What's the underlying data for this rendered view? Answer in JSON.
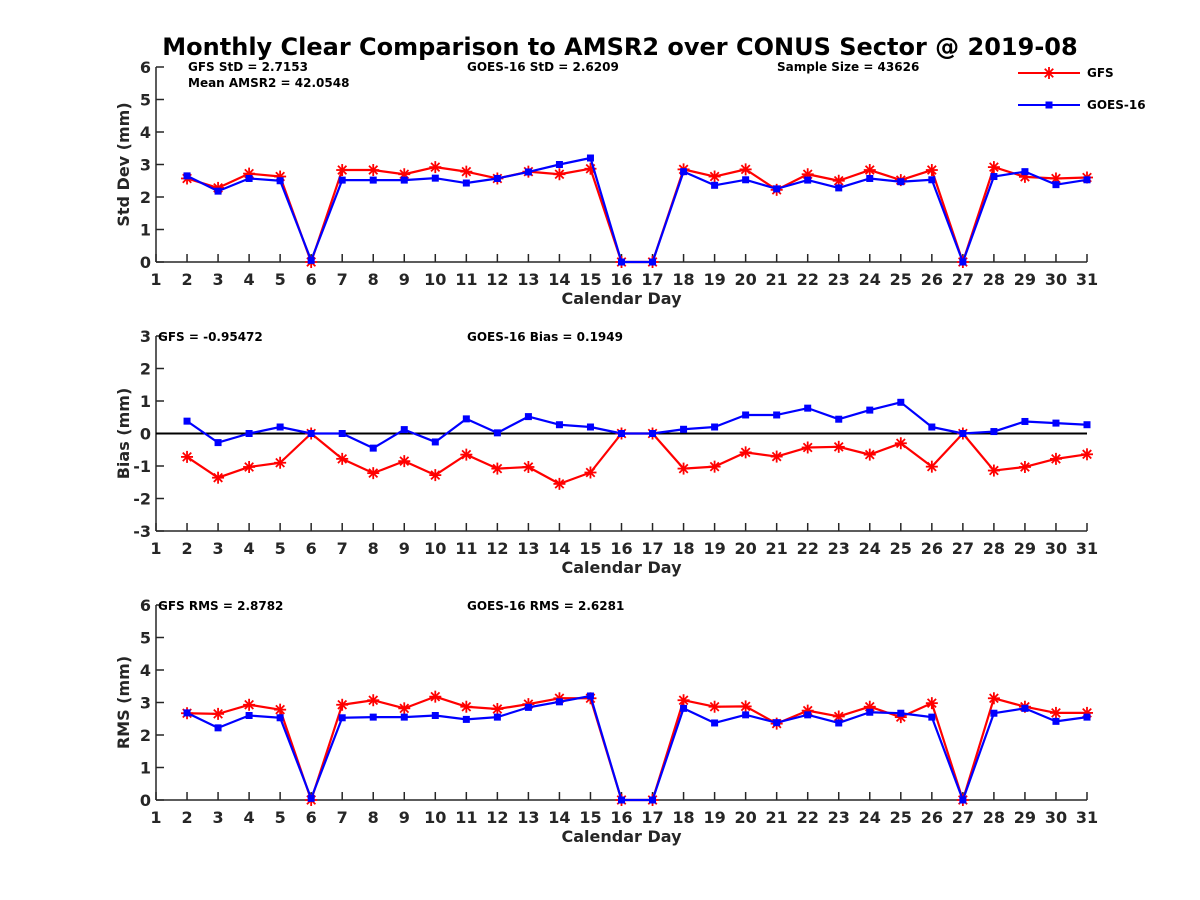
{
  "chart_data": {
    "title": "Monthly Clear Comparison to AMSR2 over CONUS Sector @ 2019-08",
    "legend": {
      "placement": "top-right",
      "entries": [
        {
          "name": "GFS",
          "color": "#ff0000",
          "marker": "asterisk"
        },
        {
          "name": "GOES-16",
          "color": "#0000ff",
          "marker": "square"
        }
      ]
    },
    "panels": [
      {
        "type": "line",
        "xlabel": "Calendar Day",
        "ylabel": "Std Dev (mm)",
        "xlim": [
          1,
          31
        ],
        "ylim": [
          0,
          6
        ],
        "xticks": [
          "1",
          "2",
          "3",
          "4",
          "5",
          "6",
          "7",
          "8",
          "9",
          "10",
          "11",
          "12",
          "13",
          "14",
          "15",
          "16",
          "17",
          "18",
          "19",
          "20",
          "21",
          "22",
          "23",
          "24",
          "25",
          "26",
          "27",
          "28",
          "29",
          "30",
          "31"
        ],
        "yticks": [
          "0",
          "1",
          "2",
          "3",
          "4",
          "5",
          "6"
        ],
        "annotations": [
          "GFS StD = 2.7153",
          "Mean AMSR2 = 42.0548",
          "GOES-16 StD = 2.6209",
          "Sample Size = 43626"
        ],
        "x": [
          2,
          3,
          4,
          5,
          6,
          7,
          8,
          9,
          10,
          11,
          12,
          13,
          14,
          15,
          16,
          17,
          18,
          19,
          20,
          21,
          22,
          23,
          24,
          25,
          26,
          27,
          28,
          29,
          30,
          31
        ],
        "series": [
          {
            "name": "GFS",
            "values": [
              2.57,
              2.28,
              2.72,
              2.63,
              0.0,
              2.83,
              2.83,
              2.7,
              2.92,
              2.78,
              2.57,
              2.78,
              2.7,
              2.87,
              0.0,
              0.0,
              2.85,
              2.63,
              2.85,
              2.22,
              2.7,
              2.5,
              2.83,
              2.52,
              2.83,
              0.0,
              2.92,
              2.62,
              2.57,
              2.6
            ]
          },
          {
            "name": "GOES-16",
            "values": [
              2.65,
              2.18,
              2.57,
              2.5,
              0.05,
              2.52,
              2.52,
              2.52,
              2.58,
              2.43,
              2.57,
              2.77,
              3.0,
              3.2,
              0.0,
              0.0,
              2.78,
              2.36,
              2.53,
              2.25,
              2.52,
              2.28,
              2.57,
              2.47,
              2.53,
              0.0,
              2.63,
              2.78,
              2.38,
              2.53
            ]
          }
        ]
      },
      {
        "type": "line",
        "xlabel": "Calendar Day",
        "ylabel": "Bias (mm)",
        "xlim": [
          1,
          31
        ],
        "ylim": [
          -3,
          3
        ],
        "zero_line": true,
        "xticks": [
          "1",
          "2",
          "3",
          "4",
          "5",
          "6",
          "7",
          "8",
          "9",
          "10",
          "11",
          "12",
          "13",
          "14",
          "15",
          "16",
          "17",
          "18",
          "19",
          "20",
          "21",
          "22",
          "23",
          "24",
          "25",
          "26",
          "27",
          "28",
          "29",
          "30",
          "31"
        ],
        "yticks": [
          "-3",
          "-2",
          "-1",
          "0",
          "1",
          "2",
          "3"
        ],
        "annotations": [
          "GFS = -0.95472",
          "GOES-16 Bias = 0.1949"
        ],
        "x": [
          2,
          3,
          4,
          5,
          6,
          7,
          8,
          9,
          10,
          11,
          12,
          13,
          14,
          15,
          16,
          17,
          18,
          19,
          20,
          21,
          22,
          23,
          24,
          25,
          26,
          27,
          28,
          29,
          30,
          31
        ],
        "series": [
          {
            "name": "GFS",
            "values": [
              -0.72,
              -1.36,
              -1.03,
              -0.9,
              0.0,
              -0.78,
              -1.22,
              -0.85,
              -1.28,
              -0.65,
              -1.08,
              -1.03,
              -1.55,
              -1.2,
              0.0,
              0.0,
              -1.08,
              -1.02,
              -0.58,
              -0.71,
              -0.43,
              -0.41,
              -0.65,
              -0.3,
              -1.02,
              0.0,
              -1.14,
              -1.03,
              -0.78,
              -0.64
            ]
          },
          {
            "name": "GOES-16",
            "values": [
              0.38,
              -0.28,
              0.0,
              0.2,
              0.0,
              0.0,
              -0.45,
              0.12,
              -0.26,
              0.45,
              0.02,
              0.52,
              0.27,
              0.2,
              0.0,
              0.0,
              0.13,
              0.2,
              0.57,
              0.57,
              0.78,
              0.44,
              0.72,
              0.96,
              0.2,
              0.0,
              0.06,
              0.37,
              0.32,
              0.27
            ]
          }
        ]
      },
      {
        "type": "line",
        "xlabel": "Calendar Day",
        "ylabel": "RMS (mm)",
        "xlim": [
          1,
          31
        ],
        "ylim": [
          0,
          6
        ],
        "xticks": [
          "1",
          "2",
          "3",
          "4",
          "5",
          "6",
          "7",
          "8",
          "9",
          "10",
          "11",
          "12",
          "13",
          "14",
          "15",
          "16",
          "17",
          "18",
          "19",
          "20",
          "21",
          "22",
          "23",
          "24",
          "25",
          "26",
          "27",
          "28",
          "29",
          "30",
          "31"
        ],
        "yticks": [
          "0",
          "1",
          "2",
          "3",
          "4",
          "5",
          "6"
        ],
        "annotations": [
          "GFS RMS = 2.8782",
          "GOES-16 RMS = 2.6281"
        ],
        "x": [
          2,
          3,
          4,
          5,
          6,
          7,
          8,
          9,
          10,
          11,
          12,
          13,
          14,
          15,
          16,
          17,
          18,
          19,
          20,
          21,
          22,
          23,
          24,
          25,
          26,
          27,
          28,
          29,
          30,
          31
        ],
        "series": [
          {
            "name": "GFS",
            "values": [
              2.67,
              2.65,
              2.93,
              2.78,
              0.0,
              2.93,
              3.07,
              2.82,
              3.18,
              2.87,
              2.8,
              2.95,
              3.13,
              3.13,
              0.0,
              0.0,
              3.07,
              2.87,
              2.88,
              2.35,
              2.75,
              2.57,
              2.87,
              2.55,
              2.98,
              0.0,
              3.13,
              2.87,
              2.68,
              2.68
            ]
          },
          {
            "name": "GOES-16",
            "values": [
              2.68,
              2.22,
              2.6,
              2.53,
              0.05,
              2.53,
              2.55,
              2.55,
              2.6,
              2.48,
              2.55,
              2.85,
              3.02,
              3.2,
              0.0,
              0.0,
              2.82,
              2.37,
              2.62,
              2.38,
              2.62,
              2.37,
              2.7,
              2.67,
              2.55,
              0.0,
              2.67,
              2.82,
              2.42,
              2.55
            ]
          }
        ]
      }
    ]
  }
}
